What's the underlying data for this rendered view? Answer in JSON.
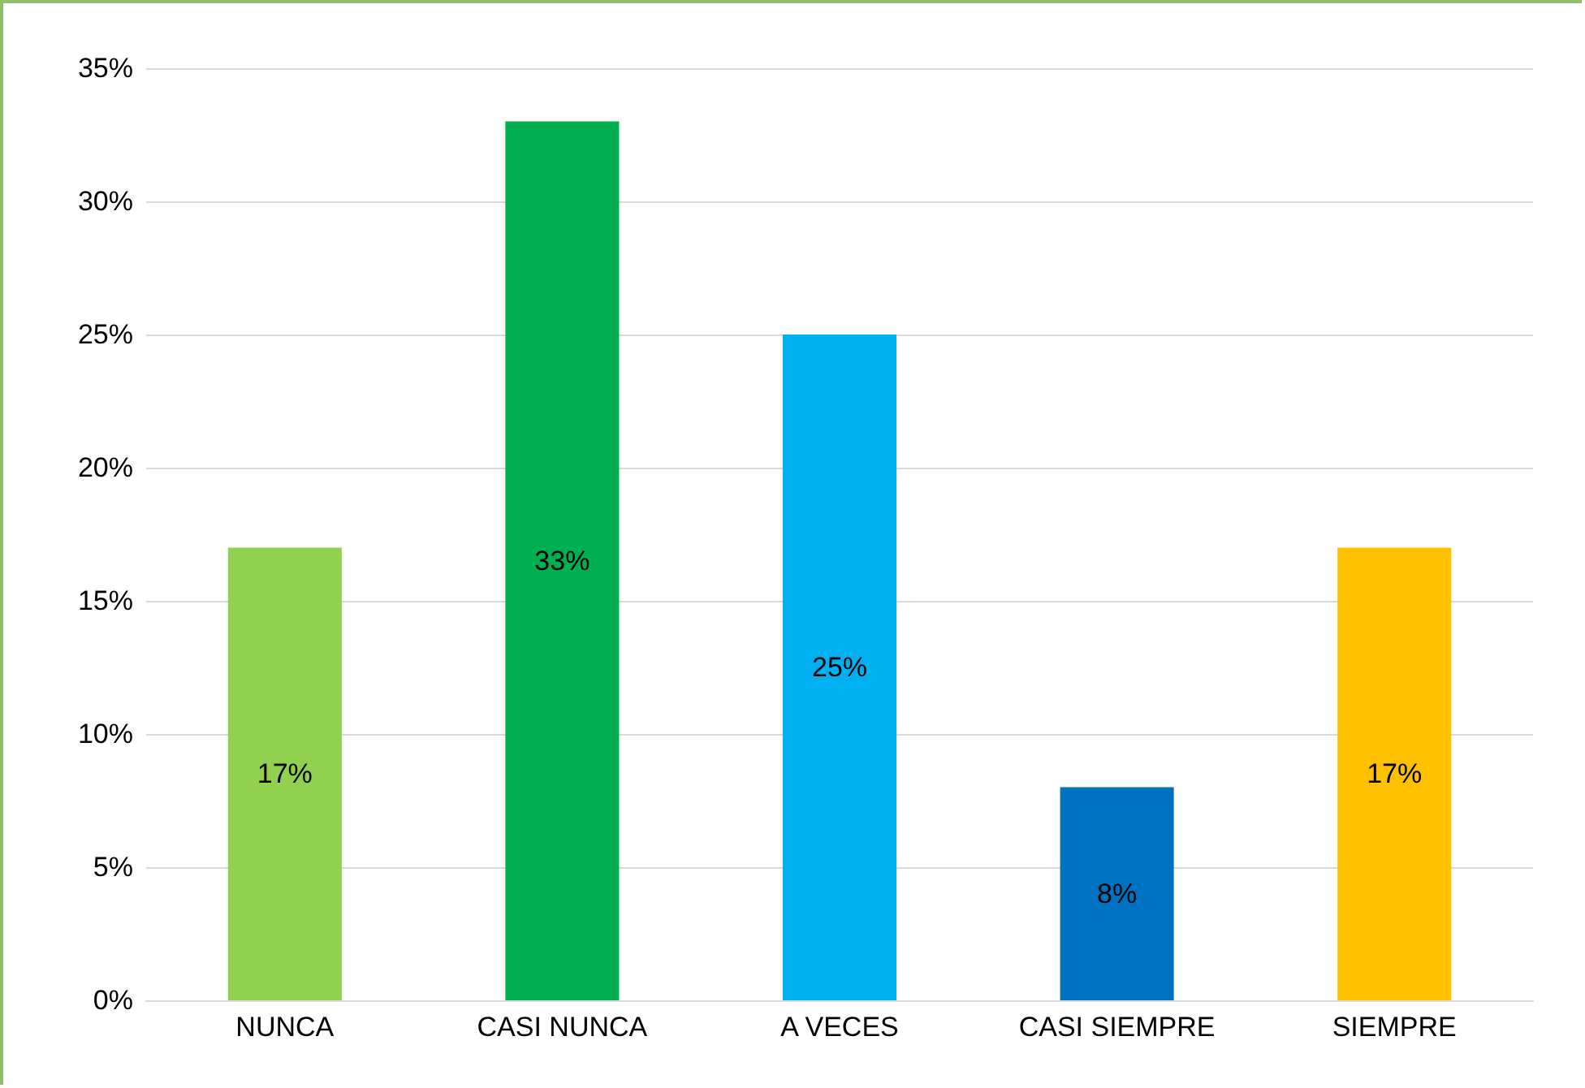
{
  "chart_data": {
    "type": "bar",
    "categories": [
      "NUNCA",
      "CASI NUNCA",
      "A VECES",
      "CASI SIEMPRE",
      "SIEMPRE"
    ],
    "values": [
      17,
      33,
      25,
      8,
      17
    ],
    "colors": [
      "#92d050",
      "#00b050",
      "#00b0f0",
      "#0070c0",
      "#ffc000"
    ],
    "value_labels": [
      "17%",
      "33%",
      "25%",
      "8%",
      "17%"
    ],
    "ylim": [
      0,
      35
    ],
    "yticks": [
      {
        "value": 0,
        "label": "0%"
      },
      {
        "value": 5,
        "label": "5%"
      },
      {
        "value": 10,
        "label": "10%"
      },
      {
        "value": 15,
        "label": "15%"
      },
      {
        "value": 20,
        "label": "20%"
      },
      {
        "value": 25,
        "label": "25%"
      },
      {
        "value": 30,
        "label": "30%"
      },
      {
        "value": 35,
        "label": "35%"
      }
    ],
    "grid": "y"
  }
}
